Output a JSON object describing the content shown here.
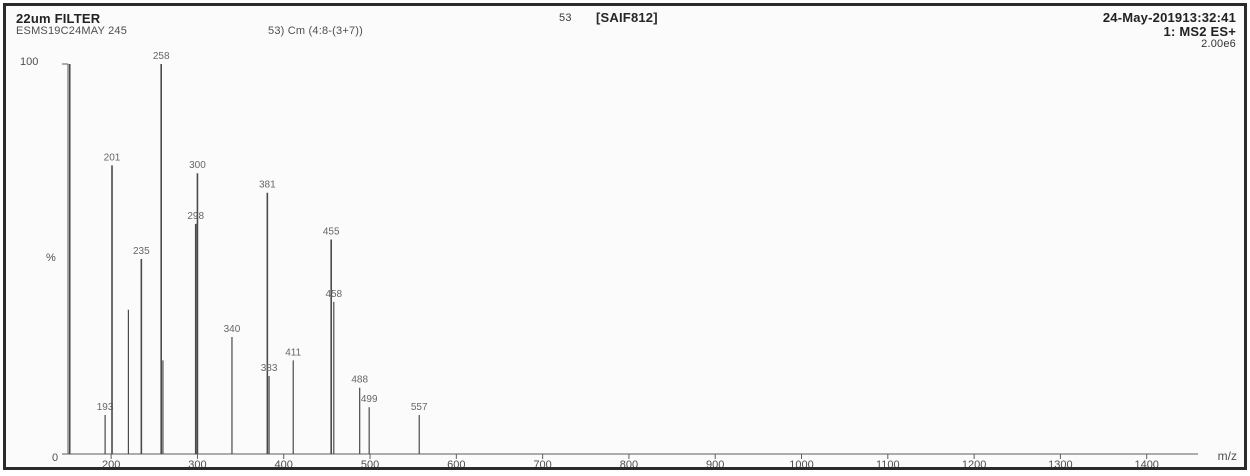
{
  "header": {
    "left_top": "22um FILTER",
    "left_bottom": "ESMS19C24MAY 245",
    "scan_descr": "53) Cm (4:8-(3+7))",
    "center_num": "53",
    "center_id": "[SAIF812]",
    "date": "24-May-201913:32:41",
    "mode": "1: MS2 ES+",
    "intensity": "2.00e6"
  },
  "axis": {
    "y_max_label": "100",
    "y_pct_label": "%",
    "y_zero_label": "0",
    "x_unit_label": "m/z"
  },
  "chart_data": {
    "type": "bar",
    "title": "",
    "xlabel": "m/z",
    "ylabel": "%",
    "xlim": [
      150,
      1500
    ],
    "ylim": [
      0,
      100
    ],
    "xticks": [
      200,
      300,
      400,
      500,
      600,
      700,
      800,
      900,
      1000,
      1100,
      1200,
      1300,
      1400
    ],
    "xtick_labels": [
      "200",
      "300",
      "400",
      "500",
      "600",
      "700",
      "800",
      "900",
      "1000",
      "1100",
      "1200",
      "1300",
      "1400"
    ],
    "grid": false,
    "legend": "none",
    "peaks": [
      {
        "mz": 152,
        "rel": 100,
        "label": ""
      },
      {
        "mz": 193,
        "rel": 10,
        "label": "193"
      },
      {
        "mz": 201,
        "rel": 74,
        "label": "201"
      },
      {
        "mz": 220,
        "rel": 37,
        "label": ""
      },
      {
        "mz": 235,
        "rel": 50,
        "label": "235"
      },
      {
        "mz": 258,
        "rel": 100,
        "label": "258"
      },
      {
        "mz": 260,
        "rel": 24,
        "label": ""
      },
      {
        "mz": 298,
        "rel": 59,
        "label": "298"
      },
      {
        "mz": 300,
        "rel": 72,
        "label": "300"
      },
      {
        "mz": 340,
        "rel": 30,
        "label": "340"
      },
      {
        "mz": 381,
        "rel": 67,
        "label": "381"
      },
      {
        "mz": 383,
        "rel": 20,
        "label": "383"
      },
      {
        "mz": 411,
        "rel": 24,
        "label": "411"
      },
      {
        "mz": 455,
        "rel": 55,
        "label": "455"
      },
      {
        "mz": 458,
        "rel": 39,
        "label": "458"
      },
      {
        "mz": 488,
        "rel": 17,
        "label": "488"
      },
      {
        "mz": 499,
        "rel": 12,
        "label": "499"
      },
      {
        "mz": 557,
        "rel": 10,
        "label": "557"
      }
    ]
  }
}
